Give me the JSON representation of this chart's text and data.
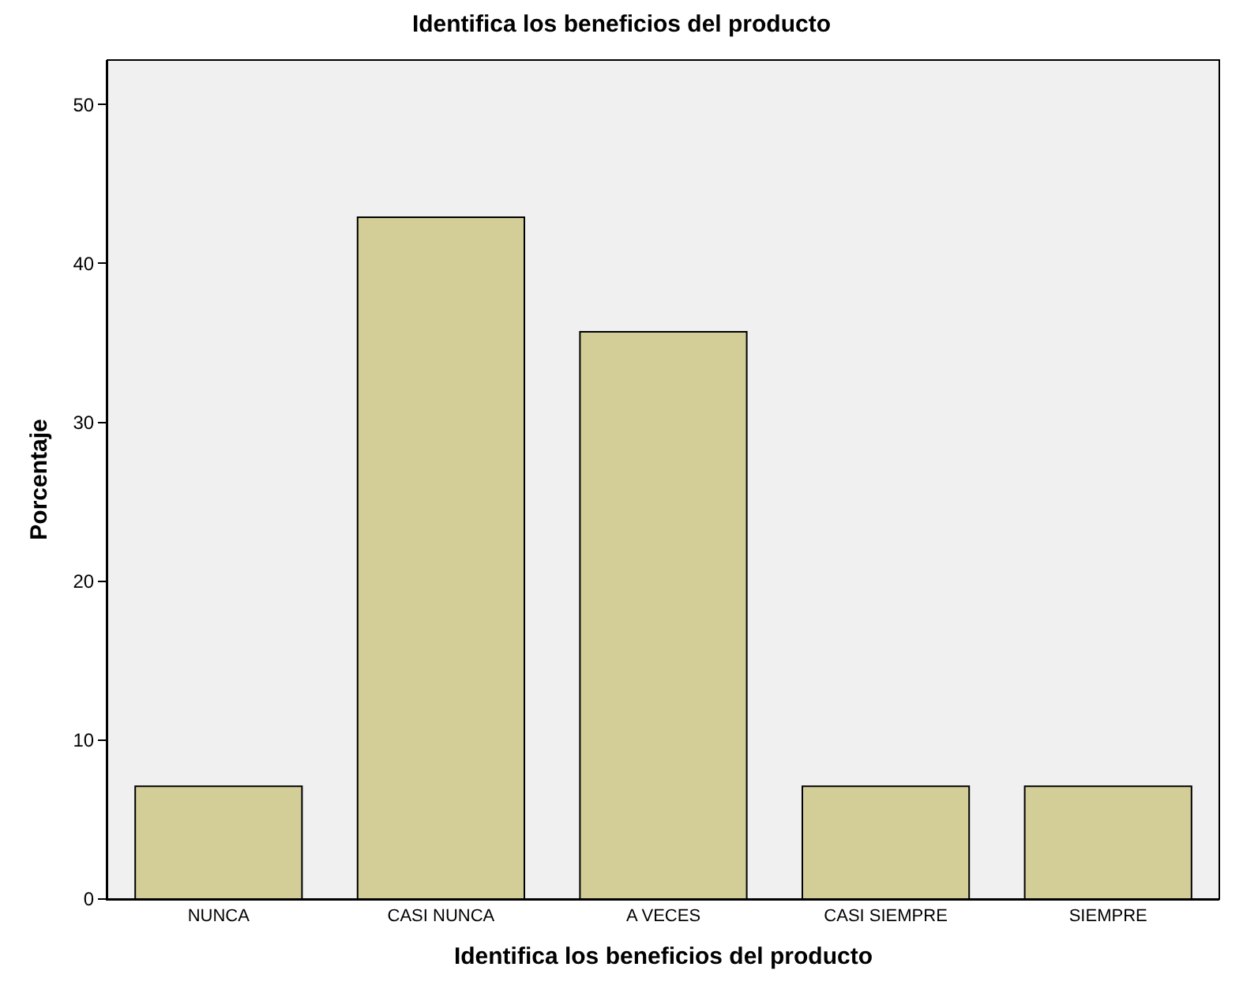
{
  "chart_data": {
    "type": "bar",
    "title": "Identifica los beneficios del producto",
    "xlabel": "Identifica los beneficios del producto",
    "ylabel": "Porcentaje",
    "categories": [
      "NUNCA",
      "CASI NUNCA",
      "A VECES",
      "CASI SIEMPRE",
      "SIEMPRE"
    ],
    "values": [
      7.1,
      42.9,
      35.7,
      7.1,
      7.1
    ],
    "color": "#d3ce98",
    "ylim": [
      0,
      52.8
    ],
    "yticks": [
      0,
      10,
      20,
      30,
      40,
      50
    ],
    "grid": false,
    "legend": false
  }
}
